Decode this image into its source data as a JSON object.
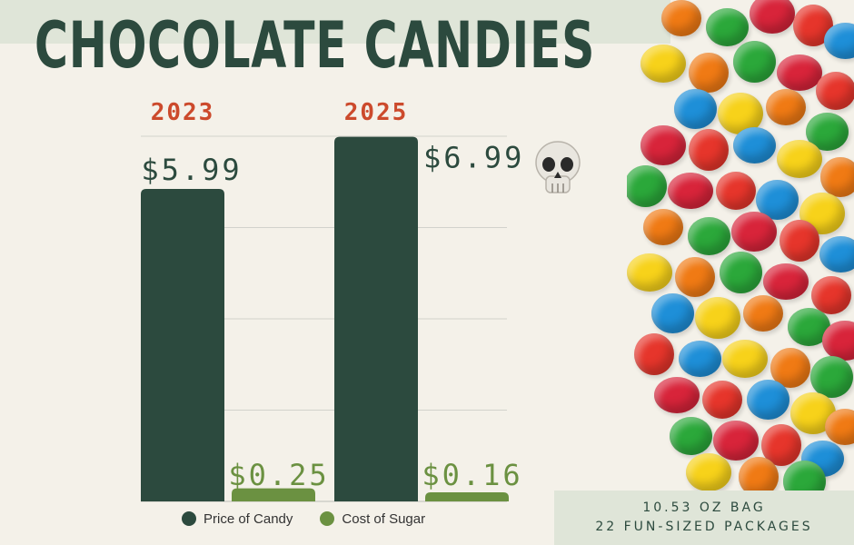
{
  "title": "CHOCOLATE CANDIES",
  "chart_data": {
    "type": "bar",
    "categories": [
      "2023",
      "2025"
    ],
    "series": [
      {
        "name": "Price of Candy",
        "values": [
          5.99,
          6.99
        ],
        "labels": [
          "$5.99",
          "$6.99"
        ],
        "color": "#2c4a3e"
      },
      {
        "name": "Cost of Sugar",
        "values": [
          0.25,
          0.16
        ],
        "labels": [
          "$0.25",
          "$0.16"
        ],
        "color": "#6b9141"
      }
    ],
    "ylim": [
      0,
      7
    ],
    "grid": true,
    "legend": "bottom",
    "xlabel": "",
    "ylabel": ""
  },
  "info": {
    "line1": "10.53 OZ BAG",
    "line2": "22 FUN-SIZED PACKAGES"
  },
  "icons": {
    "skull": "skull-icon"
  },
  "colors": {
    "background": "#f4f1e9",
    "accent_red": "#cc4a2c",
    "dark_green": "#2c4a3e",
    "light_green": "#6b9141",
    "band": "#dfe5d8"
  }
}
